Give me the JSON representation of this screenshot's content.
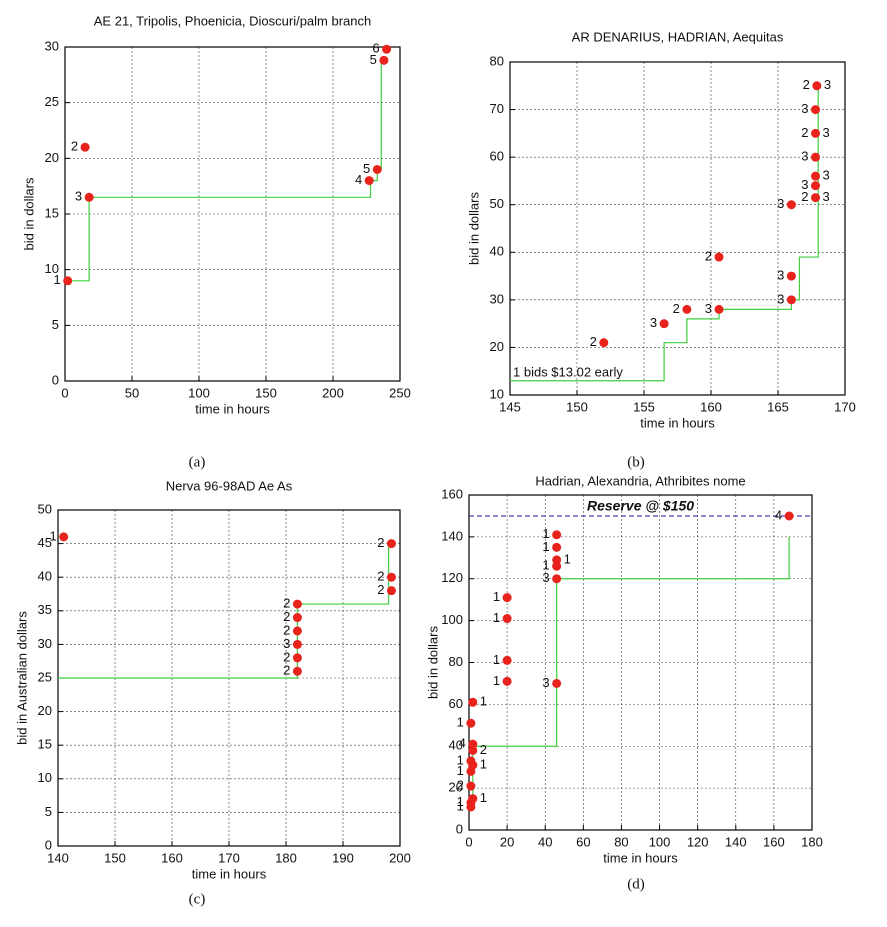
{
  "chart_data": [
    {
      "type": "scatter",
      "title": "AE 21, Tripolis, Phoenicia, Dioscuri/palm branch",
      "xlabel": "time in hours",
      "ylabel": "bid in dollars",
      "caption": "(a)",
      "xlim": [
        0,
        250
      ],
      "ylim": [
        0,
        30
      ],
      "xticks": [
        0,
        50,
        100,
        150,
        200,
        250
      ],
      "yticks": [
        0,
        5,
        10,
        15,
        20,
        25,
        30
      ],
      "grid": true,
      "point_color": "#e8231c",
      "step_color": "#3fcf3f",
      "x": [
        2,
        15,
        18,
        227,
        233,
        238,
        240
      ],
      "y": [
        9,
        21,
        16.5,
        18,
        19,
        28.8,
        29.8
      ],
      "labels_left": [
        "1",
        "2",
        "3",
        "4",
        "5",
        "5",
        "6"
      ],
      "labels_right": [
        null,
        null,
        null,
        null,
        null,
        null,
        null
      ],
      "step_x": [
        2,
        18,
        228,
        233,
        236,
        240
      ],
      "step_y": [
        9,
        16.5,
        18,
        19,
        28.8,
        28.8
      ]
    },
    {
      "type": "scatter",
      "title": "AR DENARIUS, HADRIAN, Aequitas",
      "xlabel": "time in hours",
      "ylabel": "bid in dollars",
      "caption": "(b)",
      "xlim": [
        145,
        170
      ],
      "ylim": [
        10,
        80
      ],
      "xticks": [
        145,
        150,
        155,
        160,
        165,
        170
      ],
      "yticks": [
        10,
        20,
        30,
        40,
        50,
        60,
        70,
        80
      ],
      "grid": true,
      "point_color": "#e8231c",
      "step_color": "#3fcf3f",
      "annotation": "1 bids $13.02 early",
      "x": [
        152,
        156.5,
        158.2,
        160.6,
        160.6,
        166,
        166,
        166,
        167.8,
        167.8,
        167.8,
        167.8,
        167.8,
        167.8,
        167.9
      ],
      "y": [
        21,
        25,
        28,
        28,
        39,
        30,
        35,
        50,
        51.5,
        54,
        56,
        60,
        65,
        70,
        75
      ],
      "labels_left": [
        "2",
        "3",
        "2",
        "3",
        "2",
        "3",
        "3",
        "3",
        "2",
        "3",
        null,
        "3",
        "2",
        "3",
        "2"
      ],
      "labels_right": [
        null,
        null,
        null,
        null,
        null,
        null,
        null,
        null,
        "3",
        null,
        "3",
        null,
        "3",
        null,
        "3"
      ],
      "step_x": [
        145,
        156.5,
        158.2,
        160.6,
        166,
        166.6,
        168,
        168
      ],
      "step_y": [
        13,
        21,
        26,
        28,
        30,
        39,
        50,
        75
      ]
    },
    {
      "type": "scatter",
      "title": "Nerva 96-98AD Ae As",
      "xlabel": "time in hours",
      "ylabel": "bid in Australian dollars",
      "caption": "(c)",
      "xlim": [
        140,
        200
      ],
      "ylim": [
        0,
        50
      ],
      "xticks": [
        140,
        150,
        160,
        170,
        180,
        190,
        200
      ],
      "yticks": [
        0,
        5,
        10,
        15,
        20,
        25,
        30,
        35,
        40,
        45,
        50
      ],
      "grid": true,
      "point_color": "#e8231c",
      "step_color": "#3fcf3f",
      "x": [
        141,
        182,
        182,
        182,
        182,
        182,
        182,
        198.5,
        198.5,
        198.5
      ],
      "y": [
        46,
        26,
        28,
        30,
        32,
        34,
        36,
        38,
        40,
        45
      ],
      "labels_left": [
        "1",
        "2",
        "2",
        "3",
        "2",
        "2",
        "2",
        "2",
        "2",
        "2"
      ],
      "labels_right": [
        null,
        null,
        null,
        null,
        null,
        null,
        null,
        null,
        null,
        null
      ],
      "step_x": [
        140,
        182,
        198,
        199
      ],
      "step_y": [
        25,
        36,
        45,
        45
      ]
    },
    {
      "type": "scatter",
      "title": "Hadrian, Alexandria, Athribites nome",
      "xlabel": "time in hours",
      "ylabel": "bid in dollars",
      "caption": "(d)",
      "xlim": [
        0,
        180
      ],
      "ylim": [
        0,
        160
      ],
      "xticks": [
        0,
        20,
        40,
        60,
        80,
        100,
        120,
        140,
        160,
        180
      ],
      "yticks": [
        0,
        20,
        40,
        60,
        80,
        100,
        120,
        140,
        160
      ],
      "grid": true,
      "point_color": "#e8231c",
      "step_color": "#3fcf3f",
      "reference_line": {
        "value": 150,
        "label": "Reserve @ $150",
        "color": "#1a1aa8"
      },
      "x": [
        1,
        1,
        2,
        1,
        1,
        2,
        1,
        2,
        2,
        1,
        2,
        20,
        20,
        20,
        20,
        46,
        46,
        46,
        46,
        46,
        46,
        168
      ],
      "y": [
        11,
        13,
        15,
        21,
        28,
        31,
        33,
        38,
        41,
        51,
        61,
        71,
        81,
        101,
        111,
        70,
        120,
        126,
        129,
        135,
        141,
        150
      ],
      "labels_left": [
        "1",
        "1",
        null,
        "2",
        "1",
        null,
        "1",
        null,
        "4",
        "1",
        null,
        "1",
        "1",
        "1",
        "1",
        "3",
        "3",
        "1",
        null,
        "1",
        "1",
        "4"
      ],
      "labels_right": [
        null,
        null,
        "1",
        null,
        null,
        "1",
        null,
        "2",
        null,
        null,
        "1",
        null,
        null,
        null,
        null,
        null,
        null,
        null,
        "1",
        null,
        null,
        null
      ],
      "step_x": [
        0,
        2,
        44,
        46,
        165,
        168
      ],
      "step_y": [
        10,
        40,
        40,
        120,
        120,
        140
      ]
    }
  ]
}
